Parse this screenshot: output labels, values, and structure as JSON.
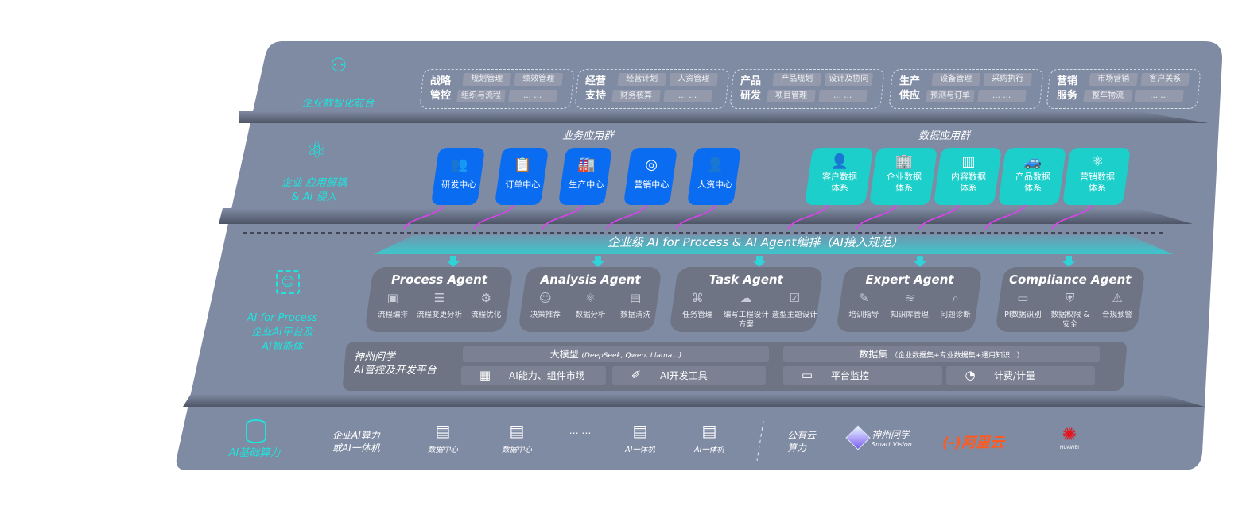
{
  "layers": {
    "frontend": {
      "label": "企业数智化前台",
      "icon": "brain-head-icon",
      "groups": [
        {
          "title": "战略管控",
          "items": [
            "规划管理",
            "绩效管理",
            "组织与流程",
            "… …"
          ]
        },
        {
          "title": "经营支持",
          "items": [
            "经营计划",
            "人资管理",
            "财务核算",
            "… …"
          ]
        },
        {
          "title": "产品研发",
          "items": [
            "产品规划",
            "设计及协同",
            "项目管理",
            "… …"
          ]
        },
        {
          "title": "生产供应",
          "items": [
            "设备管理",
            "采购执行",
            "预测与订单",
            "… …"
          ]
        },
        {
          "title": "营销服务",
          "items": [
            "市场营销",
            "客户关系",
            "整车物流",
            "… …"
          ]
        }
      ]
    },
    "apps": {
      "label_line1": "企业 应用解耦",
      "label_line2": "& AI 侵入",
      "icon": "molecule-icon",
      "business_title": "业务应用群",
      "business": [
        {
          "label": "研发中心",
          "icon": "people-icon"
        },
        {
          "label": "订单中心",
          "icon": "clipboard-icon"
        },
        {
          "label": "生产中心",
          "icon": "factory-icon"
        },
        {
          "label": "营销中心",
          "icon": "target-icon"
        },
        {
          "label": "人资中心",
          "icon": "person-icon"
        }
      ],
      "data_title": "数据应用群",
      "data": [
        {
          "line1": "客户数据",
          "line2": "体系",
          "icon": "user-icon"
        },
        {
          "line1": "企业数据",
          "line2": "体系",
          "icon": "building-icon"
        },
        {
          "line1": "内容数据",
          "line2": "体系",
          "icon": "books-icon"
        },
        {
          "line1": "产品数据",
          "line2": "体系",
          "icon": "car-icon"
        },
        {
          "line1": "营销数据",
          "line2": "体系",
          "icon": "atom-icon"
        }
      ]
    },
    "ai": {
      "label_line1": "AI for Process",
      "label_line2": "企业AI平台及",
      "label_line3": "AI智能体",
      "icon": "face-scan-icon",
      "banner": "企业级 AI for Process & AI Agent编排（AI接入规范）",
      "agents": [
        {
          "title": "Process Agent",
          "items": [
            {
              "label": "流程编排",
              "icon": "chart-window-icon"
            },
            {
              "label": "流程变更分析",
              "icon": "list-settings-icon"
            },
            {
              "label": "流程优化",
              "icon": "optimize-icon"
            }
          ]
        },
        {
          "title": "Analysis Agent",
          "items": [
            {
              "label": "决策推荐",
              "icon": "head-idea-icon"
            },
            {
              "label": "数据分析",
              "icon": "atom-icon"
            },
            {
              "label": "数据清洗",
              "icon": "document-clean-icon"
            }
          ]
        },
        {
          "title": "Task Agent",
          "items": [
            {
              "label": "任务管理",
              "icon": "network-icon"
            },
            {
              "label": "编写工程设计方案",
              "icon": "cloud-icon"
            },
            {
              "label": "造型主题设计",
              "icon": "checklist-clock-icon"
            }
          ]
        },
        {
          "title": "Expert Agent",
          "items": [
            {
              "label": "培训指导",
              "icon": "teach-icon"
            },
            {
              "label": "知识库管理",
              "icon": "layers-icon"
            },
            {
              "label": "问题诊断",
              "icon": "diagnose-icon"
            }
          ]
        },
        {
          "title": "Compliance Agent",
          "items": [
            {
              "label": "PI数据识别",
              "icon": "id-card-icon"
            },
            {
              "label": "数据权限 & 安全",
              "icon": "shield-icon"
            },
            {
              "label": "合规预警",
              "icon": "alarm-icon"
            }
          ]
        }
      ],
      "platform": {
        "title_line1": "神州问学",
        "title_line2": "AI管控及开发平台",
        "model_label": "大模型",
        "model_note": "(DeepSeek, Qwen, Llama...)",
        "dataset_label": "数据集",
        "dataset_note": "（企业数据集+专业数据集+通用知识...）",
        "tools": [
          {
            "label": "AI能力、组件市场",
            "icon": "market-icon"
          },
          {
            "label": "AI开发工具",
            "icon": "dev-tool-icon"
          },
          {
            "label": "平台监控",
            "icon": "monitor-icon"
          },
          {
            "label": "计费/计量",
            "icon": "gauge-icon"
          }
        ]
      }
    },
    "compute": {
      "label": "AI基础算力",
      "icon": "database-icon",
      "private_line1": "企业AI算力",
      "private_line2": "或AI一体机",
      "servers": [
        {
          "label": "数据中心",
          "icon": "server-icon"
        },
        {
          "label": "数据中心",
          "icon": "server-icon"
        },
        {
          "label": "… …",
          "icon": ""
        },
        {
          "label": "AI一体机",
          "icon": "server-icon"
        },
        {
          "label": "AI一体机",
          "icon": "server-icon"
        }
      ],
      "public_line1": "公有云",
      "public_line2": "算力",
      "vendors": {
        "smartvision_cn": "神州问学",
        "smartvision_en": "Smart Vision",
        "aliyun": "阿里云",
        "aliyun_mark": "(-)",
        "huawei": "HUAWEI"
      }
    }
  },
  "colors": {
    "panel": "#7f8aa3",
    "blue": "#0a6cf0",
    "teal": "#1ccfca",
    "cyan_label": "#1fe3dc",
    "arrow": "#e040f0",
    "aliyun": "#ff5a1f",
    "huawei": "#e3161d"
  }
}
